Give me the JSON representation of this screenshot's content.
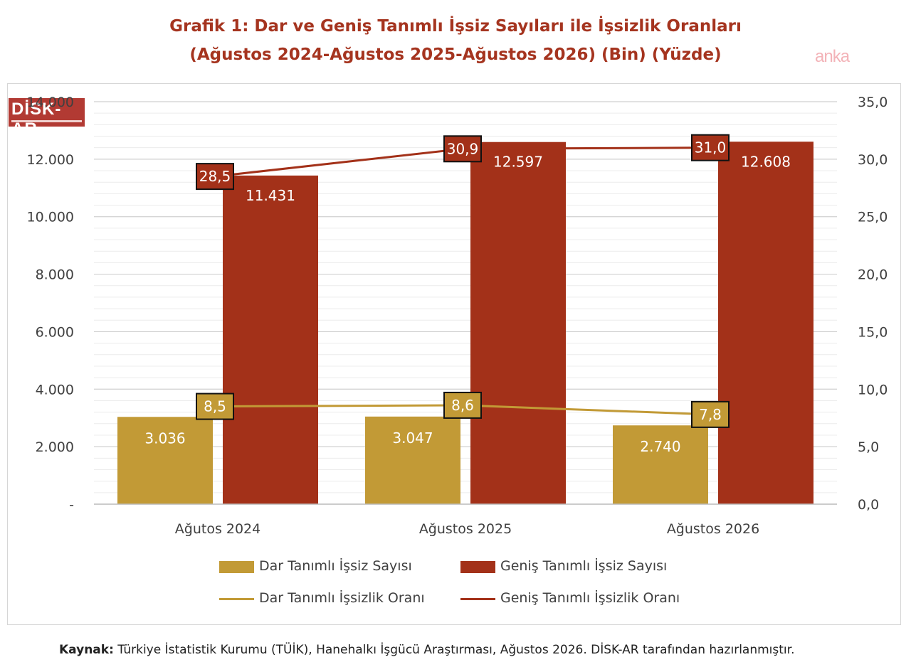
{
  "title_line1": "Grafik 1: Dar ve Geniş Tanımlı İşsiz Sayıları ile İşsizlik Oranları",
  "title_line2": "(Ağustos 2024-Ağustos 2025-Ağustos 2026) (Bin) (Yüzde)",
  "watermark": "anka",
  "logo_text": "DİSK-AR",
  "source_label": "Kaynak:",
  "source_text": " Türkiye İstatistik Kurumu (TÜİK), Hanehalkı İşgücü Araştırması, Ağustos 2026. DİSK-AR tarafından hazırlanmıştır.",
  "colors": {
    "dar": "#c29a36",
    "genis": "#a33119",
    "title": "#a5341f"
  },
  "chart_data": {
    "type": "bar",
    "categories": [
      "Ağutos 2024",
      "Ağustos 2025",
      "Ağustos 2026"
    ],
    "series": [
      {
        "name": "Dar Tanımlı İşsiz Sayısı",
        "kind": "bar",
        "axis": "left",
        "values": [
          3036,
          3047,
          2740
        ],
        "labels": [
          "3.036",
          "3.047",
          "2.740"
        ]
      },
      {
        "name": "Geniş Tanımlı İşsiz Sayısı",
        "kind": "bar",
        "axis": "left",
        "values": [
          11431,
          12597,
          12608
        ],
        "labels": [
          "11.431",
          "12.597",
          "12.608"
        ]
      },
      {
        "name": "Dar Tanımlı İşsizlik Oranı",
        "kind": "line",
        "axis": "right",
        "values": [
          8.5,
          8.6,
          7.8
        ],
        "labels": [
          "8,5",
          "8,6",
          "7,8"
        ]
      },
      {
        "name": "Geniş Tanımlı İşsizlik Oranı",
        "kind": "line",
        "axis": "right",
        "values": [
          28.5,
          30.9,
          31.0
        ],
        "labels": [
          "28,5",
          "30,9",
          "31,0"
        ]
      }
    ],
    "y_left": {
      "min": 0,
      "max": 14000,
      "ticks": [
        "-",
        "2.000",
        "4.000",
        "6.000",
        "8.000",
        "10.000",
        "12.000",
        "14.000"
      ]
    },
    "y_right": {
      "min": 0,
      "max": 35,
      "ticks": [
        "0,0",
        "5,0",
        "10,0",
        "15,0",
        "20,0",
        "25,0",
        "30,0",
        "35,0"
      ]
    },
    "grid": true,
    "legend_position": "bottom"
  }
}
